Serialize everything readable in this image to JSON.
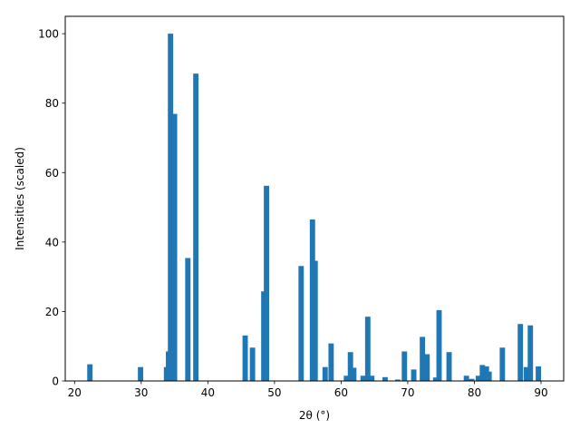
{
  "chart_data": {
    "type": "bar",
    "title": "",
    "xlabel": "2θ (°)",
    "ylabel": "Intensities (scaled)",
    "xlim": [
      18.6,
      93.4
    ],
    "ylim": [
      0,
      105
    ],
    "xticks": [
      20,
      30,
      40,
      50,
      60,
      70,
      80,
      90
    ],
    "yticks": [
      0,
      20,
      40,
      60,
      80,
      100
    ],
    "grid": false,
    "bar_color": "#1f77b4",
    "x": [
      22.3,
      29.9,
      33.8,
      34.1,
      34.4,
      35.0,
      37.0,
      38.2,
      45.6,
      46.7,
      48.4,
      48.8,
      54.0,
      55.7,
      56.1,
      57.6,
      58.5,
      60.8,
      61.4,
      61.9,
      63.3,
      64.0,
      64.6,
      66.6,
      68.5,
      69.5,
      70.9,
      72.2,
      72.9,
      74.2,
      74.7,
      76.2,
      78.8,
      79.6,
      80.6,
      81.2,
      81.8,
      82.2,
      84.2,
      86.9,
      87.8,
      88.4,
      89.6
    ],
    "values": [
      4.8,
      4.0,
      4.0,
      8.5,
      100.0,
      76.9,
      35.4,
      88.5,
      13.1,
      9.6,
      25.8,
      56.2,
      33.1,
      46.5,
      34.6,
      4.0,
      10.8,
      1.5,
      8.3,
      3.8,
      1.5,
      18.5,
      1.5,
      1.1,
      0.4,
      8.5,
      3.3,
      12.7,
      7.7,
      1.0,
      20.4,
      8.3,
      1.5,
      0.6,
      1.5,
      4.6,
      4.2,
      2.7,
      9.6,
      16.4,
      4.0,
      16.0,
      4.2
    ]
  }
}
